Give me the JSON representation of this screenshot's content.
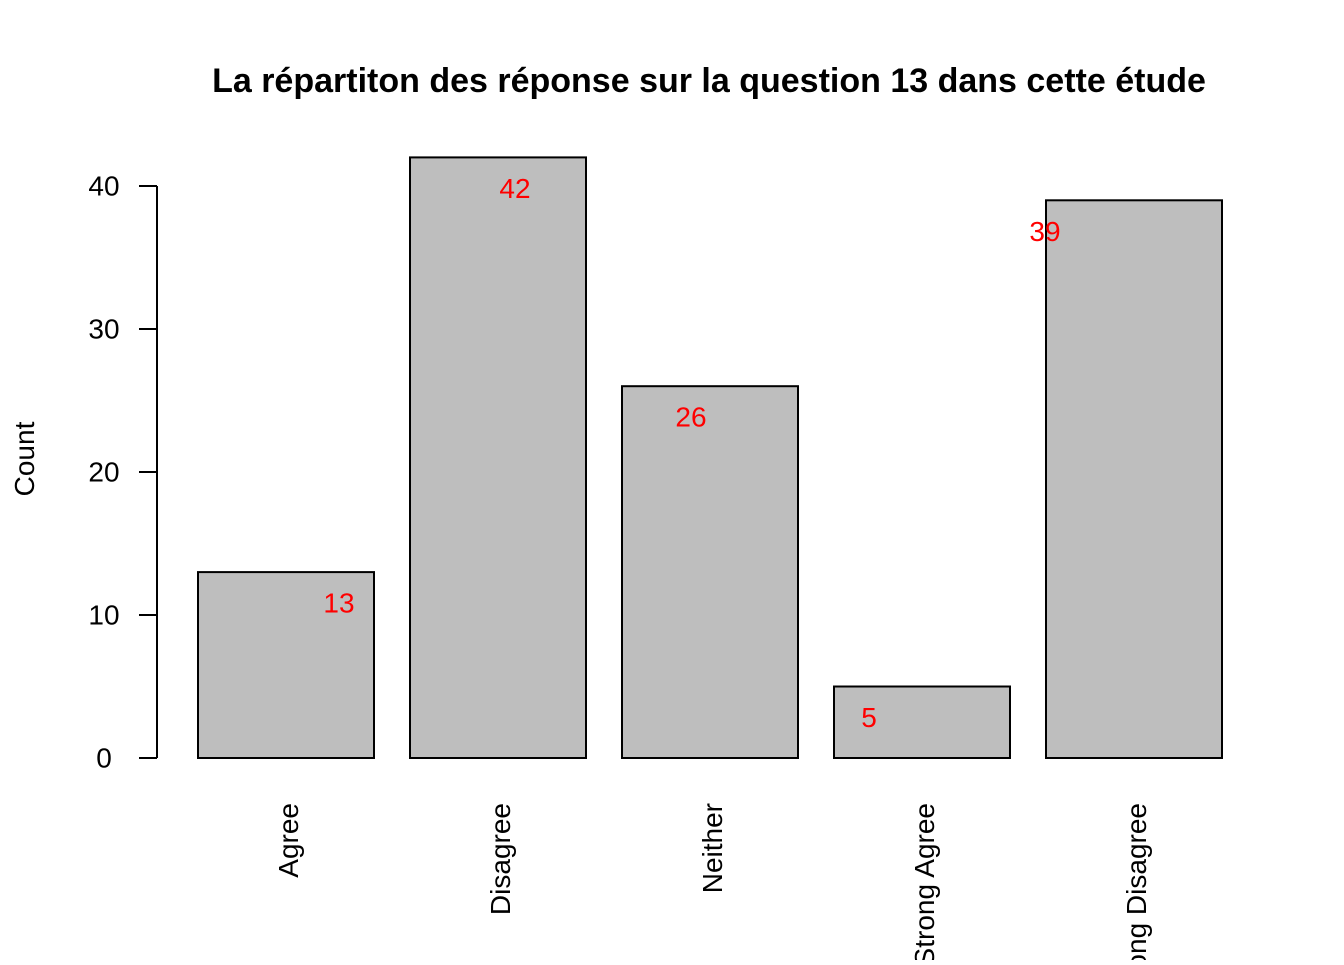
{
  "chart_data": {
    "type": "bar",
    "title": "La répartiton des réponse sur la question 13 dans cette étude",
    "xlabel": "",
    "ylabel": "Count",
    "categories": [
      "Agree",
      "Disagree",
      "Neither",
      "Strong Agree",
      "Strong Disagree"
    ],
    "values": [
      13,
      42,
      26,
      5,
      39
    ],
    "data_labels": [
      "13",
      "42",
      "26",
      "5",
      "39"
    ],
    "yticks": [
      0,
      10,
      20,
      30,
      40
    ],
    "ylim": [
      0,
      42
    ],
    "grid": false,
    "legend": "none",
    "colors": {
      "bar_fill": "#bebebe",
      "bar_stroke": "#000000",
      "data_label": "#ff0000",
      "axis": "#000000"
    }
  }
}
